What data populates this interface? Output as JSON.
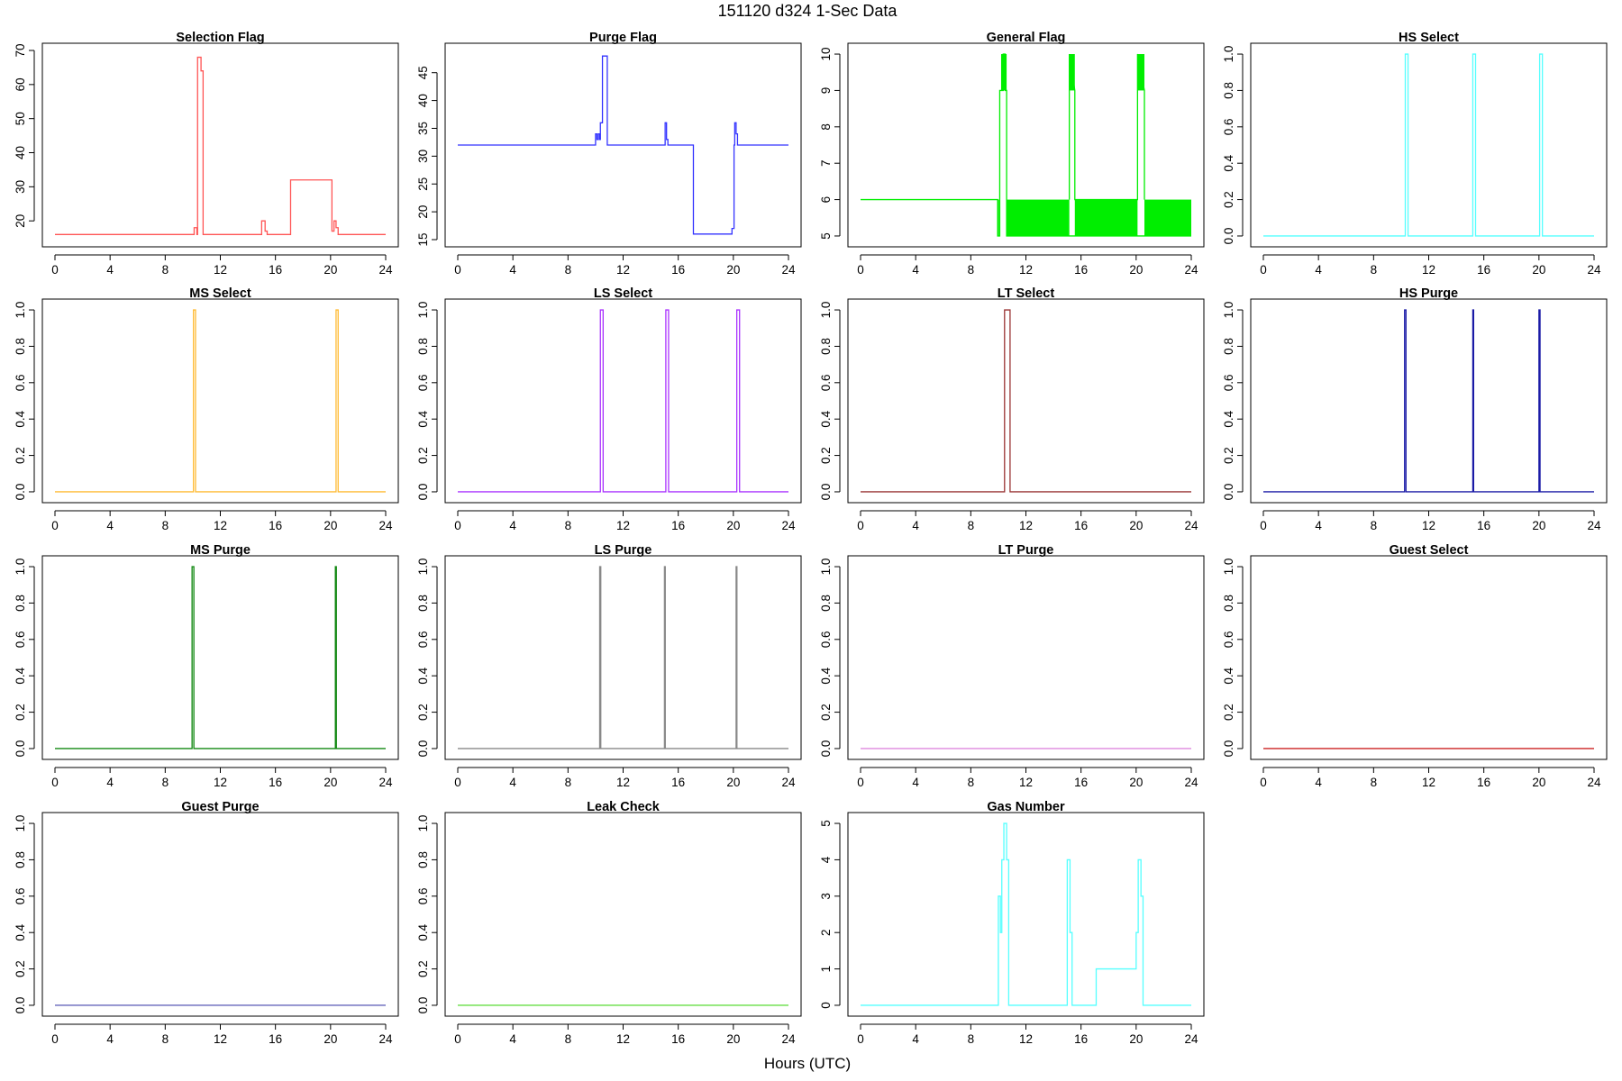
{
  "figure": {
    "title": "151120   d324   1-Sec Data",
    "xlabel": "Hours (UTC)"
  },
  "chart_data": [
    {
      "type": "line",
      "title": "Selection Flag",
      "color": "#ff5555",
      "xlim": [
        0,
        24
      ],
      "xticks": [
        0,
        4,
        8,
        12,
        16,
        20,
        24
      ],
      "ylim": [
        14.5,
        70
      ],
      "yticks": [
        20,
        30,
        40,
        50,
        60,
        70
      ],
      "ytick_labels": [
        "20",
        "30",
        "40",
        "50",
        "60",
        "70"
      ],
      "step": [
        [
          0,
          16
        ],
        [
          10.1,
          18
        ],
        [
          10.3,
          16
        ],
        [
          10.35,
          68
        ],
        [
          10.6,
          64
        ],
        [
          10.75,
          16
        ],
        [
          15.0,
          20
        ],
        [
          15.25,
          17
        ],
        [
          15.4,
          16
        ],
        [
          17.1,
          32
        ],
        [
          20.1,
          17
        ],
        [
          20.25,
          20
        ],
        [
          20.4,
          18
        ],
        [
          20.55,
          16
        ],
        [
          24,
          16
        ]
      ]
    },
    {
      "type": "line",
      "title": "Purge Flag",
      "color": "#3333ff",
      "xlim": [
        0,
        24
      ],
      "xticks": [
        0,
        4,
        8,
        12,
        16,
        20,
        24
      ],
      "ylim": [
        15,
        49
      ],
      "yticks": [
        15,
        20,
        25,
        30,
        35,
        40,
        45
      ],
      "ytick_labels": [
        "15",
        "20",
        "25",
        "30",
        "35",
        "40",
        "45"
      ],
      "step": [
        [
          0,
          32
        ],
        [
          10.0,
          34
        ],
        [
          10.1,
          33
        ],
        [
          10.2,
          34
        ],
        [
          10.3,
          33
        ],
        [
          10.35,
          36
        ],
        [
          10.5,
          48
        ],
        [
          10.85,
          32
        ],
        [
          15.05,
          36
        ],
        [
          15.15,
          33
        ],
        [
          15.25,
          32
        ],
        [
          17.1,
          16
        ],
        [
          19.9,
          17
        ],
        [
          20.05,
          32
        ],
        [
          20.1,
          36
        ],
        [
          20.2,
          34
        ],
        [
          20.3,
          32
        ],
        [
          24,
          32
        ]
      ]
    },
    {
      "type": "line",
      "title": "General Flag",
      "color": "#00ee00",
      "xlim": [
        0,
        24
      ],
      "xticks": [
        0,
        4,
        8,
        12,
        16,
        20,
        24
      ],
      "ylim": [
        4.9,
        10.1
      ],
      "yticks": [
        5,
        6,
        7,
        8,
        9,
        10
      ],
      "ytick_labels": [
        "5",
        "6",
        "7",
        "8",
        "9",
        "10"
      ],
      "step": [
        [
          0,
          6
        ],
        [
          9.95,
          5
        ],
        [
          10.1,
          9
        ],
        [
          10.35,
          10
        ],
        [
          10.5,
          9
        ],
        [
          10.6,
          5
        ],
        [
          24,
          5
        ]
      ],
      "bands": [
        [
          9.95,
          10.05,
          5,
          6
        ],
        [
          10.6,
          15.15,
          5,
          6
        ],
        [
          15.55,
          20.1,
          5,
          6
        ],
        [
          20.6,
          24,
          5,
          6
        ],
        [
          10.2,
          10.6,
          9,
          10
        ],
        [
          15.15,
          15.55,
          9,
          10
        ],
        [
          20.1,
          20.6,
          9,
          10
        ]
      ],
      "step2": [
        [
          15.15,
          6
        ],
        [
          15.15,
          9
        ],
        [
          15.15,
          10
        ],
        [
          15.55,
          9
        ],
        [
          15.55,
          6
        ],
        [
          20.1,
          6
        ],
        [
          20.1,
          9
        ],
        [
          20.1,
          10
        ],
        [
          20.6,
          9
        ],
        [
          20.6,
          6
        ]
      ]
    },
    {
      "type": "line",
      "title": "HS Select",
      "color": "#55ffff",
      "xlim": [
        0,
        24
      ],
      "xticks": [
        0,
        4,
        8,
        12,
        16,
        20,
        24
      ],
      "ylim": [
        -0.02,
        1.02
      ],
      "yticks": [
        0,
        0.2,
        0.4,
        0.6,
        0.8,
        1.0
      ],
      "ytick_labels": [
        "0.0",
        "0.2",
        "0.4",
        "0.6",
        "0.8",
        "1.0"
      ],
      "step": [
        [
          0,
          0
        ],
        [
          10.3,
          1
        ],
        [
          10.5,
          0
        ],
        [
          15.2,
          1
        ],
        [
          15.4,
          0
        ],
        [
          20.05,
          1
        ],
        [
          20.25,
          0
        ],
        [
          24,
          0
        ]
      ]
    },
    {
      "type": "line",
      "title": "MS Select",
      "color": "#ffbb33",
      "xlim": [
        0,
        24
      ],
      "xticks": [
        0,
        4,
        8,
        12,
        16,
        20,
        24
      ],
      "ylim": [
        -0.02,
        1.02
      ],
      "yticks": [
        0,
        0.2,
        0.4,
        0.6,
        0.8,
        1.0
      ],
      "ytick_labels": [
        "0.0",
        "0.2",
        "0.4",
        "0.6",
        "0.8",
        "1.0"
      ],
      "step": [
        [
          0,
          0
        ],
        [
          10.05,
          1
        ],
        [
          10.2,
          0
        ],
        [
          20.4,
          1
        ],
        [
          20.55,
          0
        ],
        [
          24,
          0
        ]
      ]
    },
    {
      "type": "line",
      "title": "LS Select",
      "color": "#aa33ff",
      "xlim": [
        0,
        24
      ],
      "xticks": [
        0,
        4,
        8,
        12,
        16,
        20,
        24
      ],
      "ylim": [
        -0.02,
        1.02
      ],
      "yticks": [
        0,
        0.2,
        0.4,
        0.6,
        0.8,
        1.0
      ],
      "ytick_labels": [
        "0.0",
        "0.2",
        "0.4",
        "0.6",
        "0.8",
        "1.0"
      ],
      "step": [
        [
          0,
          0
        ],
        [
          10.35,
          1
        ],
        [
          10.55,
          0
        ],
        [
          15.1,
          1
        ],
        [
          15.3,
          0
        ],
        [
          20.25,
          1
        ],
        [
          20.45,
          0
        ],
        [
          24,
          0
        ]
      ]
    },
    {
      "type": "line",
      "title": "LT Select",
      "color": "#993333",
      "xlim": [
        0,
        24
      ],
      "xticks": [
        0,
        4,
        8,
        12,
        16,
        20,
        24
      ],
      "ylim": [
        -0.02,
        1.02
      ],
      "yticks": [
        0,
        0.2,
        0.4,
        0.6,
        0.8,
        1.0
      ],
      "ytick_labels": [
        "0.0",
        "0.2",
        "0.4",
        "0.6",
        "0.8",
        "1.0"
      ],
      "step": [
        [
          0,
          0
        ],
        [
          10.45,
          1
        ],
        [
          10.85,
          0
        ],
        [
          24,
          0
        ]
      ]
    },
    {
      "type": "line",
      "title": "HS Purge",
      "color": "#1a1aa6",
      "xlim": [
        0,
        24
      ],
      "xticks": [
        0,
        4,
        8,
        12,
        16,
        20,
        24
      ],
      "ylim": [
        -0.02,
        1.02
      ],
      "yticks": [
        0,
        0.2,
        0.4,
        0.6,
        0.8,
        1.0
      ],
      "ytick_labels": [
        "0.0",
        "0.2",
        "0.4",
        "0.6",
        "0.8",
        "1.0"
      ],
      "step": [
        [
          0,
          0
        ],
        [
          10.25,
          1
        ],
        [
          10.35,
          0
        ],
        [
          15.2,
          1
        ],
        [
          15.26,
          0
        ],
        [
          20.0,
          1
        ],
        [
          20.08,
          0
        ],
        [
          24,
          0
        ]
      ]
    },
    {
      "type": "line",
      "title": "MS Purge",
      "color": "#118811",
      "xlim": [
        0,
        24
      ],
      "xticks": [
        0,
        4,
        8,
        12,
        16,
        20,
        24
      ],
      "ylim": [
        -0.02,
        1.02
      ],
      "yticks": [
        0,
        0.2,
        0.4,
        0.6,
        0.8,
        1.0
      ],
      "ytick_labels": [
        "0.0",
        "0.2",
        "0.4",
        "0.6",
        "0.8",
        "1.0"
      ],
      "step": [
        [
          0,
          0
        ],
        [
          9.95,
          1
        ],
        [
          10.08,
          0
        ],
        [
          20.35,
          1
        ],
        [
          20.42,
          0
        ],
        [
          24,
          0
        ]
      ]
    },
    {
      "type": "line",
      "title": "LS Purge",
      "color": "#888888",
      "xlim": [
        0,
        24
      ],
      "xticks": [
        0,
        4,
        8,
        12,
        16,
        20,
        24
      ],
      "ylim": [
        -0.02,
        1.02
      ],
      "yticks": [
        0,
        0.2,
        0.4,
        0.6,
        0.8,
        1.0
      ],
      "ytick_labels": [
        "0.0",
        "0.2",
        "0.4",
        "0.6",
        "0.8",
        "1.0"
      ],
      "step": [
        [
          0,
          0
        ],
        [
          10.3,
          1
        ],
        [
          10.38,
          0
        ],
        [
          15.0,
          1
        ],
        [
          15.06,
          0
        ],
        [
          20.2,
          1
        ],
        [
          20.26,
          0
        ],
        [
          24,
          0
        ]
      ]
    },
    {
      "type": "line",
      "title": "LT Purge",
      "color": "#dd88dd",
      "xlim": [
        0,
        24
      ],
      "xticks": [
        0,
        4,
        8,
        12,
        16,
        20,
        24
      ],
      "ylim": [
        -0.02,
        1.02
      ],
      "yticks": [
        0,
        0.2,
        0.4,
        0.6,
        0.8,
        1.0
      ],
      "ytick_labels": [
        "0.0",
        "0.2",
        "0.4",
        "0.6",
        "0.8",
        "1.0"
      ],
      "step": [
        [
          0,
          0
        ],
        [
          24,
          0
        ]
      ]
    },
    {
      "type": "line",
      "title": "Guest Select",
      "color": "#cc2222",
      "xlim": [
        0,
        24
      ],
      "xticks": [
        0,
        4,
        8,
        12,
        16,
        20,
        24
      ],
      "ylim": [
        -0.02,
        1.02
      ],
      "yticks": [
        0,
        0.2,
        0.4,
        0.6,
        0.8,
        1.0
      ],
      "ytick_labels": [
        "0.0",
        "0.2",
        "0.4",
        "0.6",
        "0.8",
        "1.0"
      ],
      "step": [
        [
          0,
          0
        ],
        [
          24,
          0
        ]
      ]
    },
    {
      "type": "line",
      "title": "Guest Purge",
      "color": "#6666bb",
      "xlim": [
        0,
        24
      ],
      "xticks": [
        0,
        4,
        8,
        12,
        16,
        20,
        24
      ],
      "ylim": [
        -0.02,
        1.02
      ],
      "yticks": [
        0,
        0.2,
        0.4,
        0.6,
        0.8,
        1.0
      ],
      "ytick_labels": [
        "0.0",
        "0.2",
        "0.4",
        "0.6",
        "0.8",
        "1.0"
      ],
      "step": [
        [
          0,
          0
        ],
        [
          24,
          0
        ]
      ]
    },
    {
      "type": "line",
      "title": "Leak Check",
      "color": "#66dd44",
      "xlim": [
        0,
        24
      ],
      "xticks": [
        0,
        4,
        8,
        12,
        16,
        20,
        24
      ],
      "ylim": [
        -0.02,
        1.02
      ],
      "yticks": [
        0,
        0.2,
        0.4,
        0.6,
        0.8,
        1.0
      ],
      "ytick_labels": [
        "0.0",
        "0.2",
        "0.4",
        "0.6",
        "0.8",
        "1.0"
      ],
      "step": [
        [
          0,
          0
        ],
        [
          24,
          0
        ]
      ]
    },
    {
      "type": "line",
      "title": "Gas Number",
      "color": "#55ffff",
      "xlim": [
        0,
        24
      ],
      "xticks": [
        0,
        4,
        8,
        12,
        16,
        20,
        24
      ],
      "ylim": [
        -0.1,
        5.1
      ],
      "yticks": [
        0,
        1,
        2,
        3,
        4,
        5
      ],
      "ytick_labels": [
        "0",
        "1",
        "2",
        "3",
        "4",
        "5"
      ],
      "step": [
        [
          0,
          0
        ],
        [
          10.0,
          3
        ],
        [
          10.15,
          2
        ],
        [
          10.25,
          4
        ],
        [
          10.4,
          5
        ],
        [
          10.6,
          4
        ],
        [
          10.75,
          0
        ],
        [
          15.0,
          4
        ],
        [
          15.2,
          2
        ],
        [
          15.35,
          0
        ],
        [
          17.1,
          1
        ],
        [
          20.0,
          2
        ],
        [
          20.15,
          4
        ],
        [
          20.35,
          3
        ],
        [
          20.5,
          0
        ],
        [
          24,
          0
        ]
      ]
    }
  ]
}
